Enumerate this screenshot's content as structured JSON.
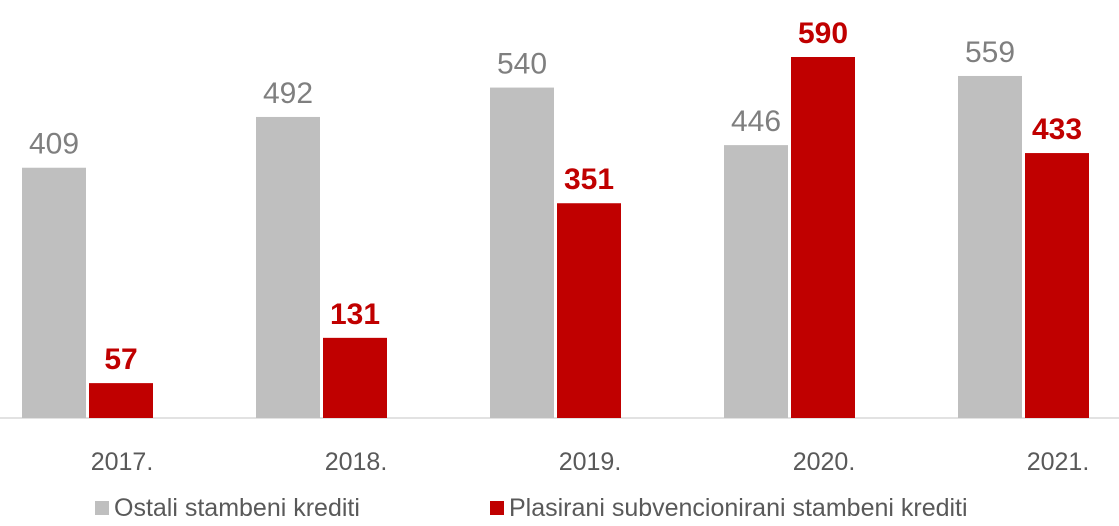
{
  "chart_data": {
    "type": "bar",
    "categories": [
      "2017.",
      "2018.",
      "2019.",
      "2020.",
      "2021."
    ],
    "series": [
      {
        "name": "Ostali stambeni krediti",
        "color": "#bfbfbf",
        "values": [
          409,
          492,
          540,
          446,
          559
        ]
      },
      {
        "name": "Plasirani subvencionirani stambeni krediti",
        "color": "#c00000",
        "values": [
          57,
          131,
          351,
          590,
          433
        ]
      }
    ]
  }
}
